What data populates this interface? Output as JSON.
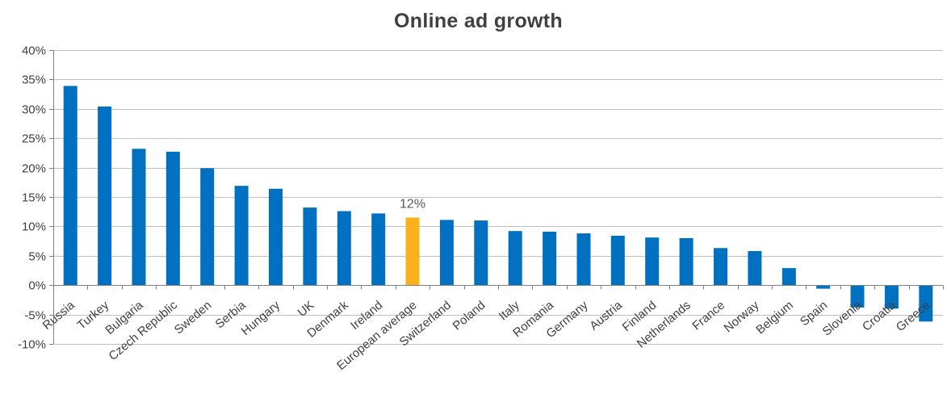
{
  "chart_data": {
    "type": "bar",
    "title": "Online ad growth",
    "xlabel": "",
    "ylabel": "",
    "ylim": [
      -10,
      40
    ],
    "y_ticks": [
      "40%",
      "35%",
      "30%",
      "25%",
      "20%",
      "15%",
      "10%",
      "5%",
      "0%",
      "-5%",
      "-10%"
    ],
    "y_tick_values": [
      40,
      35,
      30,
      25,
      20,
      15,
      10,
      5,
      0,
      -5,
      -10
    ],
    "grid": true,
    "legend": "none",
    "categories": [
      "Russia",
      "Turkey",
      "Bulgaria",
      "Czech Republic",
      "Sweden",
      "Serbia",
      "Hungary",
      "UK",
      "Denmark",
      "Ireland",
      "European average",
      "Switzerland",
      "Poland",
      "Italy",
      "Romania",
      "Germany",
      "Austria",
      "Finland",
      "Netherlands",
      "France",
      "Norway",
      "Belgium",
      "Spain",
      "Slovenia",
      "Croatia",
      "Greece"
    ],
    "values": [
      33.9,
      30.4,
      23.2,
      22.7,
      19.9,
      16.9,
      16.4,
      13.2,
      12.6,
      12.2,
      11.5,
      11.1,
      11.0,
      9.2,
      9.1,
      8.8,
      8.4,
      8.1,
      8.0,
      6.3,
      5.8,
      2.9,
      -0.6,
      -3.8,
      -4.0,
      -6.2
    ],
    "highlight_category": "European average",
    "data_labels": [
      {
        "category": "European average",
        "text": "12%"
      }
    ],
    "colors": {
      "bar": "#0070C0",
      "highlight": "#F9B21B",
      "grid": "#C0C0C0",
      "axis": "#808080",
      "text": "#404040"
    }
  }
}
